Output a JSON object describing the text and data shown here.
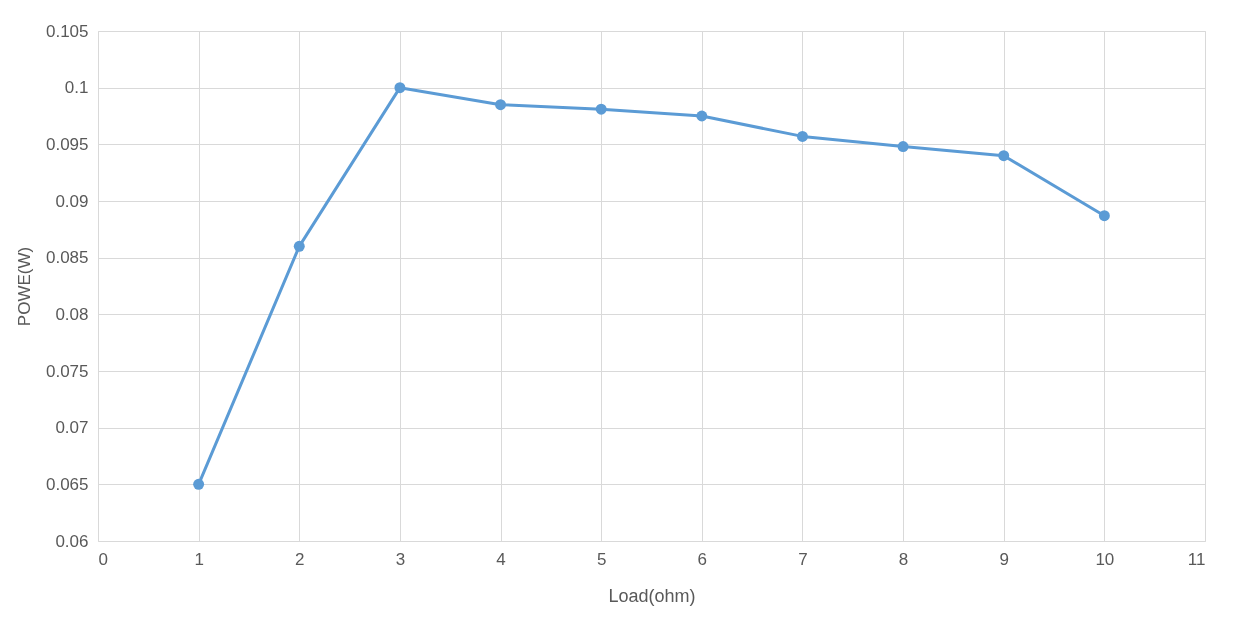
{
  "chart_data": {
    "type": "line",
    "xlabel": "Load(ohm)",
    "ylabel": "POWE(W)",
    "x": [
      1,
      2,
      3,
      4,
      5,
      6,
      7,
      8,
      9,
      10
    ],
    "series": [
      {
        "color": "#5b9bd5",
        "values": [
          0.065,
          0.086,
          0.1,
          0.0985,
          0.0981,
          0.0975,
          0.0957,
          0.0948,
          0.094,
          0.0887
        ]
      }
    ],
    "xlim": [
      0,
      11
    ],
    "xticks": [
      0,
      1,
      2,
      3,
      4,
      5,
      6,
      7,
      8,
      9,
      10,
      11
    ],
    "ylim": [
      0.06,
      0.105
    ],
    "yticks": [
      0.06,
      0.065,
      0.07,
      0.075,
      0.08,
      0.085,
      0.09,
      0.095,
      0.1,
      0.105
    ],
    "grid": true,
    "marker": "circle",
    "line_style": "solid"
  }
}
